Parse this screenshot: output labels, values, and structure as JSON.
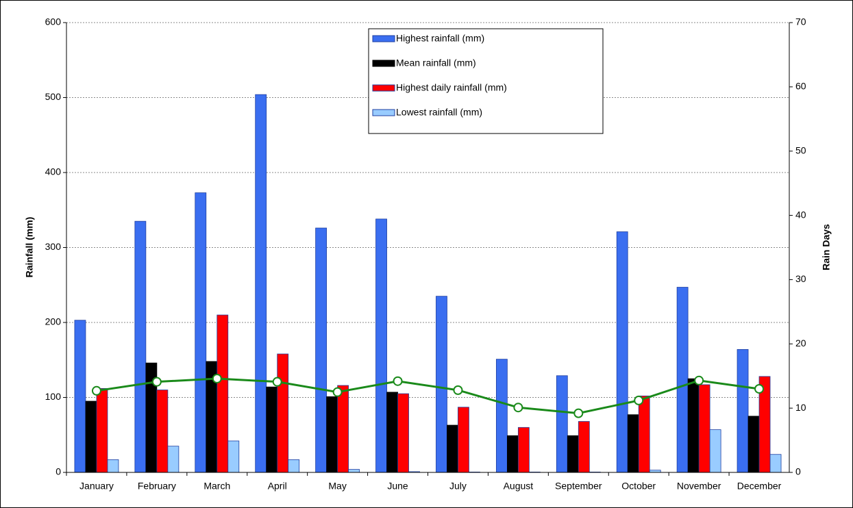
{
  "chart_data": {
    "type": "bar",
    "categories": [
      "January",
      "February",
      "March",
      "April",
      "May",
      "June",
      "July",
      "August",
      "September",
      "October",
      "November",
      "December"
    ],
    "y_label": "Rainfall (mm)",
    "y2_label": "Rain Days",
    "ylim": [
      0,
      600
    ],
    "yticks": [
      0,
      100,
      200,
      300,
      400,
      500,
      600
    ],
    "y2lim": [
      0,
      70
    ],
    "y2ticks": [
      0,
      10,
      20,
      30,
      40,
      50,
      60,
      70
    ],
    "grid": true,
    "legend": "top",
    "series": [
      {
        "name": "Highest rainfall (mm)",
        "type": "bar",
        "color": "#3a6ef0",
        "values": [
          203,
          335,
          373,
          504,
          326,
          338,
          235,
          151,
          129,
          321,
          247,
          164
        ]
      },
      {
        "name": "Mean rainfall (mm)",
        "type": "bar",
        "color": "#000000",
        "values": [
          95,
          146,
          148,
          114,
          101,
          107,
          63,
          49,
          49,
          77,
          125,
          75
        ]
      },
      {
        "name": "Highest daily rainfall (mm)",
        "type": "bar",
        "color": "#ff0000",
        "values": [
          112,
          110,
          210,
          158,
          116,
          105,
          87,
          60,
          68,
          102,
          117,
          128
        ]
      },
      {
        "name": "Lowest rainfall (mm)",
        "type": "bar",
        "color": "#99ccff",
        "values": [
          17,
          35,
          42,
          17,
          4,
          1,
          0.5,
          0.5,
          0.5,
          3,
          57,
          24
        ]
      },
      {
        "name": "Rain Days",
        "type": "line",
        "axis": "y2",
        "color": "#1a8a1a",
        "values": [
          12.7,
          14.1,
          14.6,
          14.1,
          12.5,
          14.2,
          12.8,
          10.1,
          9.2,
          11.2,
          14.3,
          13.0
        ]
      }
    ]
  }
}
